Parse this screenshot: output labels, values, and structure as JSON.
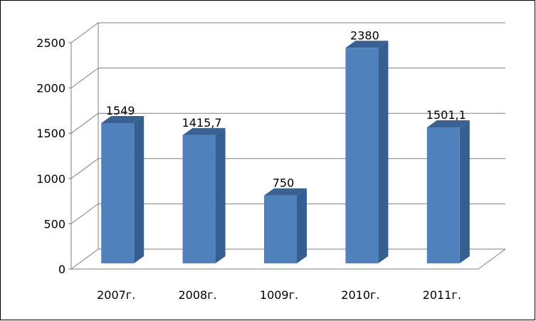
{
  "chart_data": {
    "type": "bar",
    "categories": [
      "2007г.",
      "2008г.",
      "1009г.",
      "2010г.",
      "2011г."
    ],
    "values": [
      1549,
      1415.7,
      750,
      2380,
      1501.1
    ],
    "data_labels": [
      "1549",
      "1415,7",
      "750",
      "2380",
      "1501,1"
    ],
    "y_ticks": [
      "0",
      "500",
      "1000",
      "1500",
      "2000",
      "2500"
    ],
    "ylim": [
      0,
      2500
    ],
    "grid": true,
    "legend": "none",
    "three_d": true,
    "colors": {
      "bar_front": "#4f81bd",
      "bar_side": "#365f91",
      "bar_top": "#3a6194",
      "grid": "#7f7f7f",
      "frame": "#000000"
    }
  }
}
